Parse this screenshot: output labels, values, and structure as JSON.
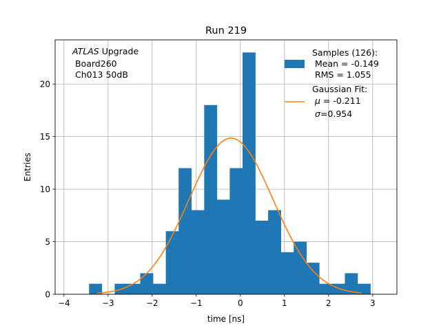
{
  "chart_data": {
    "type": "bar",
    "title": "Run 219",
    "xlabel": "time [ns]",
    "ylabel": "Entries",
    "xlim": [
      -4.2,
      3.55
    ],
    "ylim": [
      0,
      24.2
    ],
    "xticks": [
      -4,
      -3,
      -2,
      -1,
      0,
      1,
      2,
      3
    ],
    "yticks": [
      0,
      5,
      10,
      15,
      20
    ],
    "grid": true,
    "bin_width": 0.29,
    "hist": {
      "bin_lefts": [
        -3.43,
        -2.85,
        -2.56,
        -2.27,
        -1.98,
        -1.69,
        -1.4,
        -1.11,
        -0.82,
        -0.53,
        -0.24,
        0.05,
        0.34,
        0.63,
        0.92,
        1.21,
        1.5,
        1.79,
        2.08,
        2.37,
        2.66
      ],
      "values": [
        1,
        1,
        1,
        2,
        1,
        6,
        12,
        8,
        18,
        9,
        12,
        23,
        7,
        8,
        4,
        5,
        3,
        1,
        1,
        2,
        1
      ],
      "color": "#1f77b4"
    },
    "fit": {
      "type": "gaussian",
      "mu": -0.211,
      "sigma": 0.954,
      "amplitude": 14.85,
      "x_range": [
        -3.25,
        2.75
      ],
      "color": "#ff7f0e"
    },
    "annotation": {
      "italic": "ATLAS",
      "rest": " Upgrade",
      "line2": "Board260",
      "line3": "Ch013 50dB"
    },
    "legend": {
      "position": "top-right",
      "samples": {
        "title": "Samples (126):",
        "line2": "Mean = -0.149",
        "line3": "RMS = 1.055"
      },
      "fit": {
        "title": "Gaussian Fit:",
        "mu_symbol": "μ",
        "mu_text": " = -0.211",
        "sigma_symbol": "σ",
        "sigma_text": "=0.954"
      }
    }
  }
}
